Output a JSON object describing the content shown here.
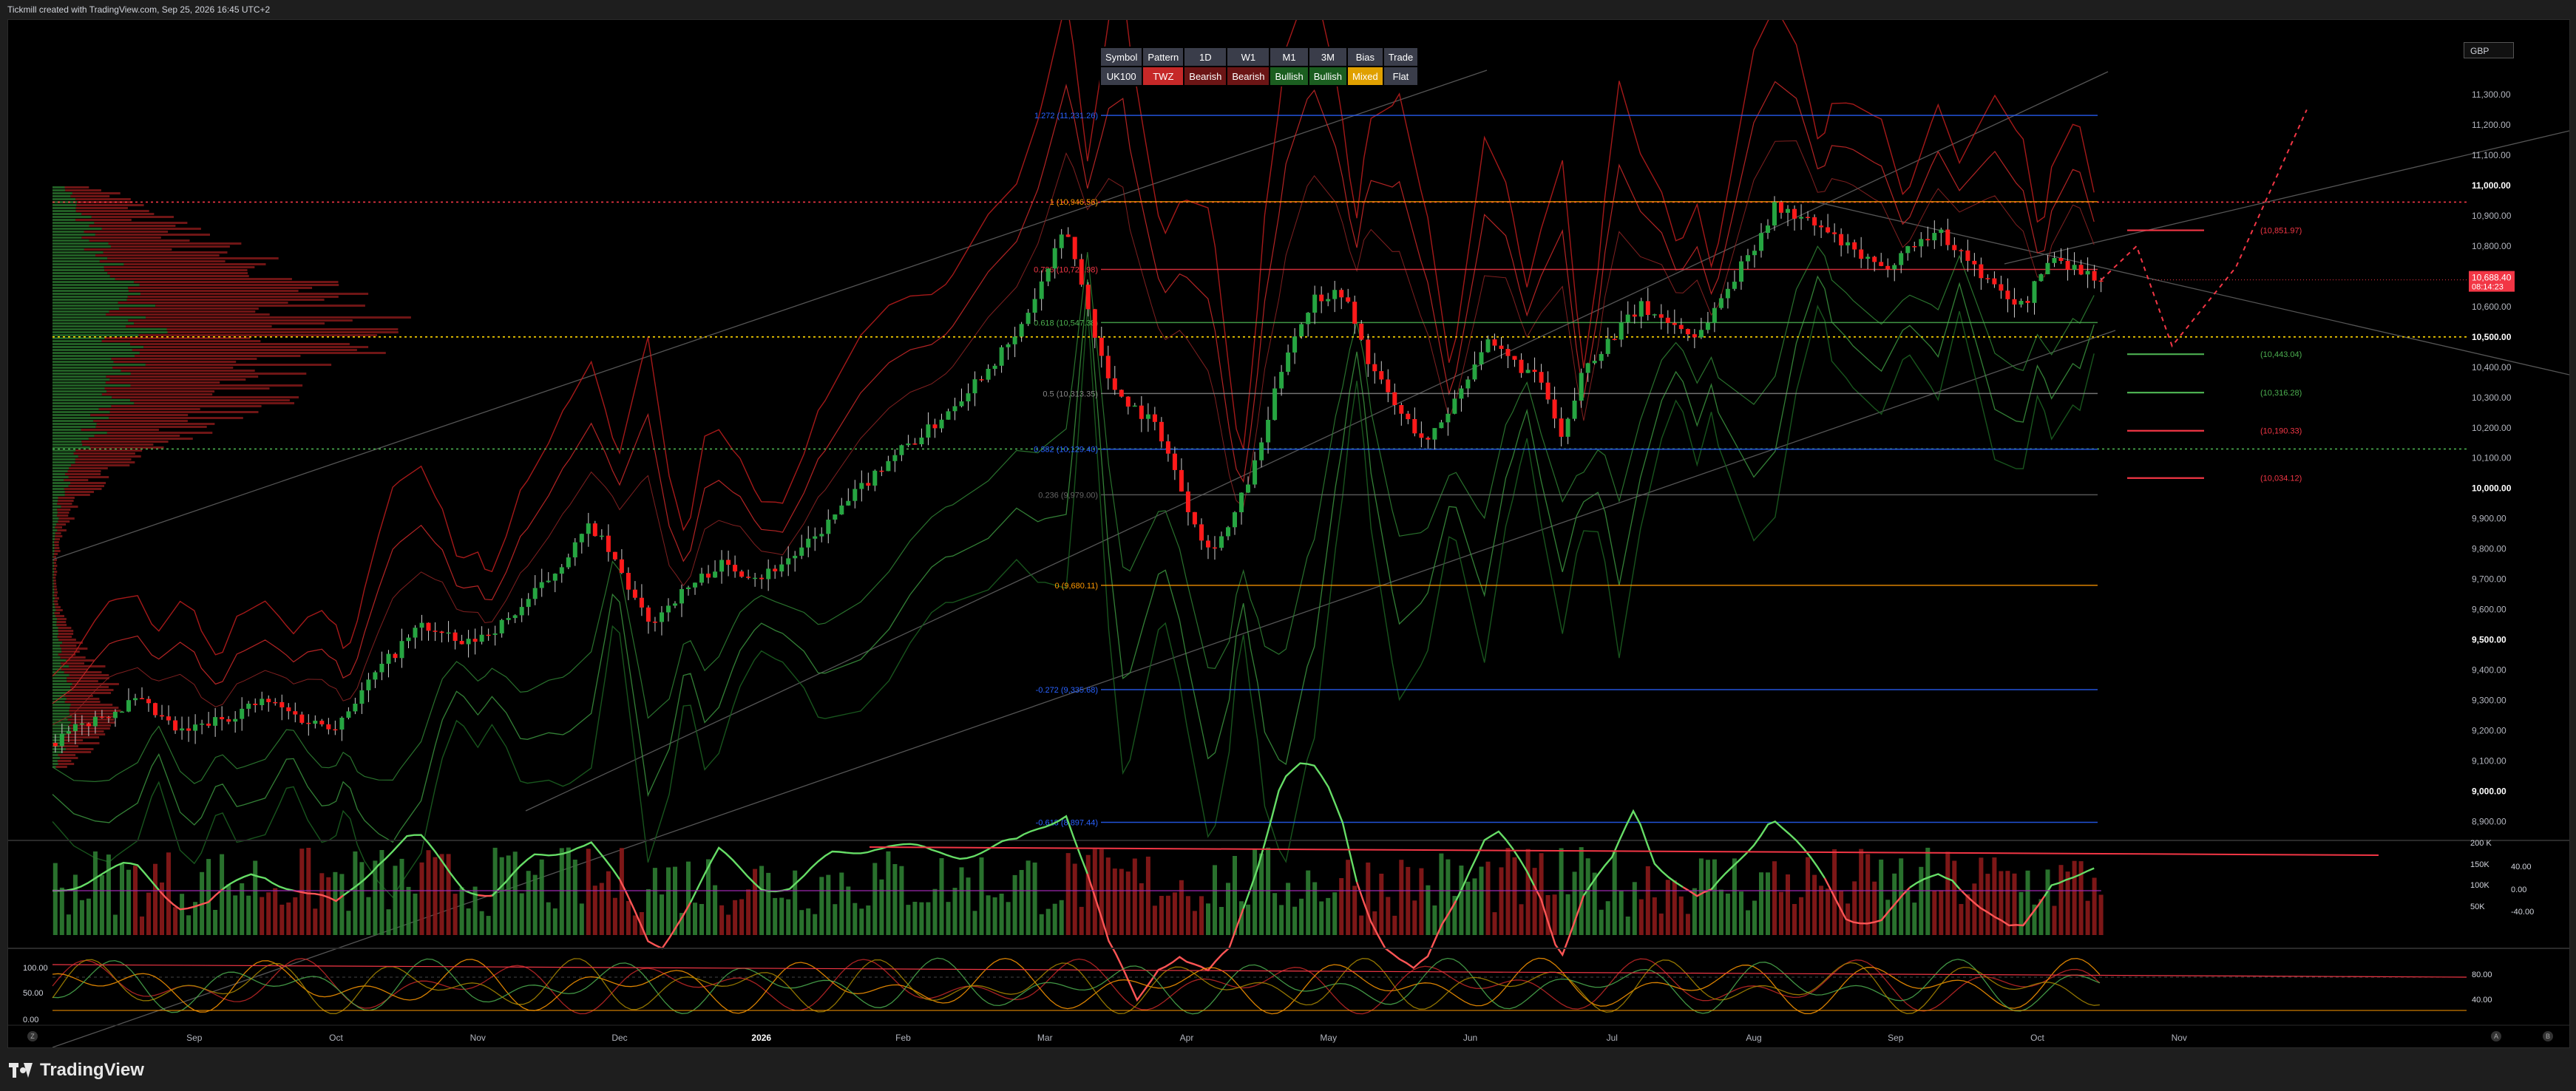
{
  "header": {
    "credit": "Tickmill created with TradingView.com, Sep 25, 2026 16:45 UTC+2"
  },
  "currency_selector": {
    "value": "GBP"
  },
  "signal_table": {
    "headers": [
      "Symbol",
      "Pattern",
      "1D",
      "W1",
      "M1",
      "3M",
      "Bias",
      "Trade"
    ],
    "values": [
      {
        "text": "UK100",
        "style": "plain"
      },
      {
        "text": "TWZ",
        "style": "twz"
      },
      {
        "text": "Bearish",
        "style": "bear"
      },
      {
        "text": "Bearish",
        "style": "bear"
      },
      {
        "text": "Bullish",
        "style": "bull"
      },
      {
        "text": "Bullish",
        "style": "bull"
      },
      {
        "text": "Mixed",
        "style": "mixed"
      },
      {
        "text": "Flat",
        "style": "plain"
      }
    ]
  },
  "footer": {
    "brand": "TradingView",
    "corner_left": "Z",
    "corner_right_a": "A",
    "corner_right_b": "B"
  },
  "chart_data": {
    "type": "line",
    "symbol": "UK100",
    "price_axis": {
      "range": [
        8850,
        11400
      ],
      "ticks": [
        {
          "v": 11300,
          "label": "11,300.00"
        },
        {
          "v": 11200,
          "label": "11,200.00"
        },
        {
          "v": 11100,
          "label": "11,100.00"
        },
        {
          "v": 11000,
          "label": "11,000.00",
          "bold": true
        },
        {
          "v": 10900,
          "label": "10,900.00"
        },
        {
          "v": 10800,
          "label": "10,800.00"
        },
        {
          "v": 10600,
          "label": "10,600.00"
        },
        {
          "v": 10500,
          "label": "10,500.00",
          "bold": true
        },
        {
          "v": 10400,
          "label": "10,400.00"
        },
        {
          "v": 10300,
          "label": "10,300.00"
        },
        {
          "v": 10200,
          "label": "10,200.00"
        },
        {
          "v": 10100,
          "label": "10,100.00"
        },
        {
          "v": 10000,
          "label": "10,000.00",
          "bold": true
        },
        {
          "v": 9900,
          "label": "9,900.00"
        },
        {
          "v": 9800,
          "label": "9,800.00"
        },
        {
          "v": 9700,
          "label": "9,700.00"
        },
        {
          "v": 9600,
          "label": "9,600.00"
        },
        {
          "v": 9500,
          "label": "9,500.00",
          "bold": true
        },
        {
          "v": 9400,
          "label": "9,400.00"
        },
        {
          "v": 9300,
          "label": "9,300.00"
        },
        {
          "v": 9200,
          "label": "9,200.00"
        },
        {
          "v": 9100,
          "label": "9,100.00"
        },
        {
          "v": 9000,
          "label": "9,000.00",
          "bold": true
        },
        {
          "v": 8900,
          "label": "8,900.00"
        }
      ]
    },
    "last_price": {
      "value": 10688.4,
      "label": "10,688.40",
      "countdown": "08:14:23"
    },
    "time_axis": {
      "range_months": [
        0,
        17.7
      ],
      "ticks": [
        {
          "m": 1,
          "label": "Sep"
        },
        {
          "m": 2,
          "label": "Oct"
        },
        {
          "m": 3,
          "label": "Nov"
        },
        {
          "m": 4,
          "label": "Dec"
        },
        {
          "m": 5,
          "label": "2026",
          "bold": true
        },
        {
          "m": 6,
          "label": "Feb"
        },
        {
          "m": 7,
          "label": "Mar"
        },
        {
          "m": 8,
          "label": "Apr"
        },
        {
          "m": 9,
          "label": "May"
        },
        {
          "m": 10,
          "label": "Jun"
        },
        {
          "m": 11,
          "label": "Jul"
        },
        {
          "m": 12,
          "label": "Aug"
        },
        {
          "m": 13,
          "label": "Sep"
        },
        {
          "m": 14,
          "label": "Oct"
        },
        {
          "m": 15,
          "label": "Nov"
        }
      ]
    },
    "fib_levels": [
      {
        "ratio_label": "1.272 (11,231.26)",
        "v": 11231.26,
        "color": "#2962ff"
      },
      {
        "ratio_label": "1 (10,946.56)",
        "v": 10946.56,
        "color": "#ff9800"
      },
      {
        "ratio_label": "0.786 (10,722.98)",
        "v": 10722.98,
        "color": "#f23645"
      },
      {
        "ratio_label": "0.618 (10,547.38)",
        "v": 10547.38,
        "color": "#4caf50"
      },
      {
        "ratio_label": "0.5 (10,313.35)",
        "v": 10313.35,
        "color": "#888888"
      },
      {
        "ratio_label": "0.382 (10,129.40)",
        "v": 10129.4,
        "color": "#2962ff"
      },
      {
        "ratio_label": "0.236 (9,979.00)",
        "v": 9979.0,
        "color": "#666666"
      },
      {
        "ratio_label": "0 (9,680.11)",
        "v": 9680.11,
        "color": "#ff9800"
      },
      {
        "ratio_label": "-0.272 (9,335.68)",
        "v": 9335.68,
        "color": "#2962ff"
      },
      {
        "ratio_label": "-0.618 (8,897.44)",
        "v": 8897.44,
        "color": "#2962ff"
      }
    ],
    "target_levels": [
      {
        "label": "(10,851.97)",
        "v": 10851.97,
        "color": "#f23645"
      },
      {
        "label": "(10,443.04)",
        "v": 10443.04,
        "color": "#4caf50"
      },
      {
        "label": "(10,316.28)",
        "v": 10316.28,
        "color": "#4caf50"
      },
      {
        "label": "(10,190.33)",
        "v": 10190.33,
        "color": "#f23645"
      },
      {
        "label": "(10,034.12)",
        "v": 10034.12,
        "color": "#f23645"
      }
    ],
    "horizontal_dotted": [
      {
        "v": 10945,
        "color": "#f23645"
      },
      {
        "v": 10500,
        "color": "#ffd600"
      },
      {
        "v": 10130,
        "color": "#4caf50"
      }
    ],
    "price_path": [
      {
        "m": 0.0,
        "p": 9160
      },
      {
        "m": 0.3,
        "p": 9240
      },
      {
        "m": 0.6,
        "p": 9300
      },
      {
        "m": 0.9,
        "p": 9190
      },
      {
        "m": 1.2,
        "p": 9240
      },
      {
        "m": 1.5,
        "p": 9300
      },
      {
        "m": 1.8,
        "p": 9230
      },
      {
        "m": 2.0,
        "p": 9220
      },
      {
        "m": 2.3,
        "p": 9400
      },
      {
        "m": 2.6,
        "p": 9550
      },
      {
        "m": 2.9,
        "p": 9480
      },
      {
        "m": 3.2,
        "p": 9560
      },
      {
        "m": 3.5,
        "p": 9700
      },
      {
        "m": 3.8,
        "p": 9880
      },
      {
        "m": 4.0,
        "p": 9730
      },
      {
        "m": 4.2,
        "p": 9550
      },
      {
        "m": 4.4,
        "p": 9640
      },
      {
        "m": 4.7,
        "p": 9750
      },
      {
        "m": 5.0,
        "p": 9710
      },
      {
        "m": 5.3,
        "p": 9800
      },
      {
        "m": 5.6,
        "p": 9950
      },
      {
        "m": 5.9,
        "p": 10100
      },
      {
        "m": 6.2,
        "p": 10200
      },
      {
        "m": 6.5,
        "p": 10350
      },
      {
        "m": 6.8,
        "p": 10500
      },
      {
        "m": 7.0,
        "p": 10700
      },
      {
        "m": 7.15,
        "p": 10860
      },
      {
        "m": 7.3,
        "p": 10600
      },
      {
        "m": 7.45,
        "p": 10350
      },
      {
        "m": 7.6,
        "p": 10280
      },
      {
        "m": 7.8,
        "p": 10200
      },
      {
        "m": 8.0,
        "p": 9950
      },
      {
        "m": 8.15,
        "p": 9800
      },
      {
        "m": 8.3,
        "p": 9870
      },
      {
        "m": 8.5,
        "p": 10100
      },
      {
        "m": 8.7,
        "p": 10450
      },
      {
        "m": 8.9,
        "p": 10630
      },
      {
        "m": 9.1,
        "p": 10650
      },
      {
        "m": 9.3,
        "p": 10400
      },
      {
        "m": 9.5,
        "p": 10250
      },
      {
        "m": 9.7,
        "p": 10150
      },
      {
        "m": 9.9,
        "p": 10300
      },
      {
        "m": 10.1,
        "p": 10480
      },
      {
        "m": 10.3,
        "p": 10420
      },
      {
        "m": 10.5,
        "p": 10350
      },
      {
        "m": 10.65,
        "p": 10150
      },
      {
        "m": 10.8,
        "p": 10400
      },
      {
        "m": 11.0,
        "p": 10500
      },
      {
        "m": 11.2,
        "p": 10600
      },
      {
        "m": 11.4,
        "p": 10550
      },
      {
        "m": 11.6,
        "p": 10500
      },
      {
        "m": 11.8,
        "p": 10650
      },
      {
        "m": 12.0,
        "p": 10800
      },
      {
        "m": 12.15,
        "p": 10930
      },
      {
        "m": 12.3,
        "p": 10900
      },
      {
        "m": 12.5,
        "p": 10850
      },
      {
        "m": 12.7,
        "p": 10780
      },
      {
        "m": 12.9,
        "p": 10720
      },
      {
        "m": 13.1,
        "p": 10800
      },
      {
        "m": 13.3,
        "p": 10850
      },
      {
        "m": 13.5,
        "p": 10760
      },
      {
        "m": 13.7,
        "p": 10660
      },
      {
        "m": 13.9,
        "p": 10600
      },
      {
        "m": 14.1,
        "p": 10770
      },
      {
        "m": 14.3,
        "p": 10720
      },
      {
        "m": 14.45,
        "p": 10688
      }
    ],
    "projection_path": [
      {
        "m": 14.45,
        "p": 10688
      },
      {
        "m": 14.7,
        "p": 10800
      },
      {
        "m": 14.95,
        "p": 10470
      },
      {
        "m": 15.4,
        "p": 10730
      },
      {
        "m": 15.9,
        "p": 11250
      }
    ],
    "volume_axis": {
      "ticks": [
        "200 K",
        "150K",
        "100K",
        "50K"
      ]
    },
    "oscillator_axis": {
      "ticks": [
        "40.00",
        "0.00",
        "-40.00"
      ]
    },
    "stoch_axis": {
      "left_ticks": [
        "100.00",
        "50.00",
        "0.00"
      ],
      "right_ticks": [
        "80.00",
        "40.00"
      ]
    }
  }
}
